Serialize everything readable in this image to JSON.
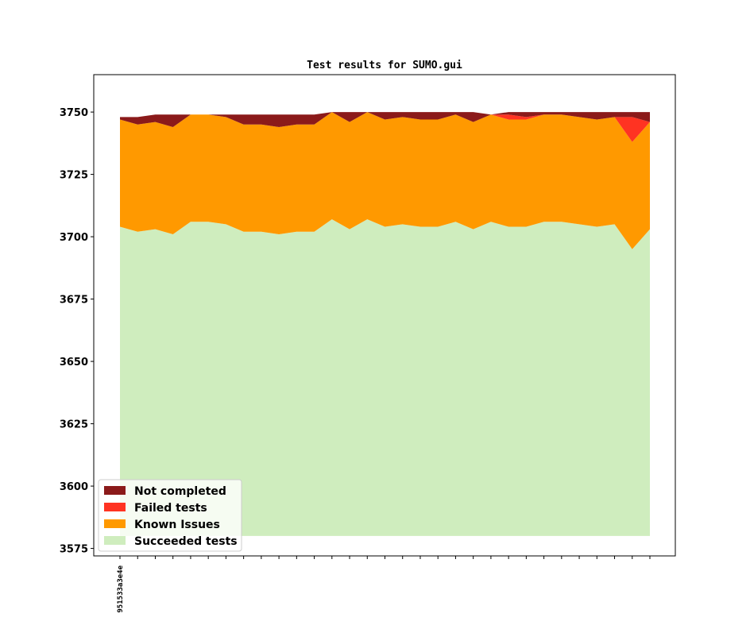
{
  "chart_data": {
    "type": "area",
    "title": "Test results for SUMO.gui",
    "xlabel": "",
    "ylabel": "",
    "ylim": [
      3572,
      3765
    ],
    "yticks": [
      3575,
      3600,
      3625,
      3650,
      3675,
      3700,
      3725,
      3750
    ],
    "xtick_labels": [
      "951533a3e4e",
      "",
      "",
      "",
      "",
      "",
      "",
      "",
      "",
      "",
      "",
      "",
      "",
      "",
      "",
      "",
      "",
      "",
      "",
      "",
      "",
      "",
      "",
      "",
      "",
      "",
      "",
      "",
      "",
      "",
      ""
    ],
    "baseline": 3580,
    "legend_position": "lower-left",
    "series": [
      {
        "name": "Succeeded tests",
        "color": "#cfedbe",
        "values": [
          3704,
          3702,
          3703,
          3701,
          3706,
          3706,
          3705,
          3702,
          3702,
          3701,
          3702,
          3702,
          3707,
          3703,
          3707,
          3704,
          3705,
          3704,
          3704,
          3706,
          3703,
          3706,
          3704,
          3704,
          3706,
          3706,
          3705,
          3704,
          3705,
          3695,
          3703
        ]
      },
      {
        "name": "Known Issues",
        "color": "#ff9900",
        "values": [
          43,
          43,
          43,
          43,
          43,
          43,
          43,
          43,
          43,
          43,
          43,
          43,
          43,
          43,
          43,
          43,
          43,
          43,
          43,
          43,
          43,
          43,
          43,
          43,
          43,
          43,
          43,
          43,
          43,
          43,
          43
        ]
      },
      {
        "name": "Failed tests",
        "color": "#ff3322",
        "values": [
          0,
          0,
          0,
          0,
          0,
          0,
          0,
          0,
          0,
          0,
          0,
          0,
          0,
          0,
          0,
          0,
          0,
          0,
          0,
          0,
          0,
          0,
          2,
          1,
          0,
          0,
          0,
          0,
          0,
          10,
          0
        ]
      },
      {
        "name": "Not completed",
        "color": "#8b1a1a",
        "values": [
          1,
          3,
          3,
          5,
          0,
          0,
          1,
          4,
          4,
          5,
          4,
          4,
          0,
          4,
          0,
          3,
          2,
          3,
          3,
          1,
          4,
          0,
          1,
          2,
          1,
          1,
          2,
          3,
          2,
          2,
          4
        ]
      }
    ]
  }
}
